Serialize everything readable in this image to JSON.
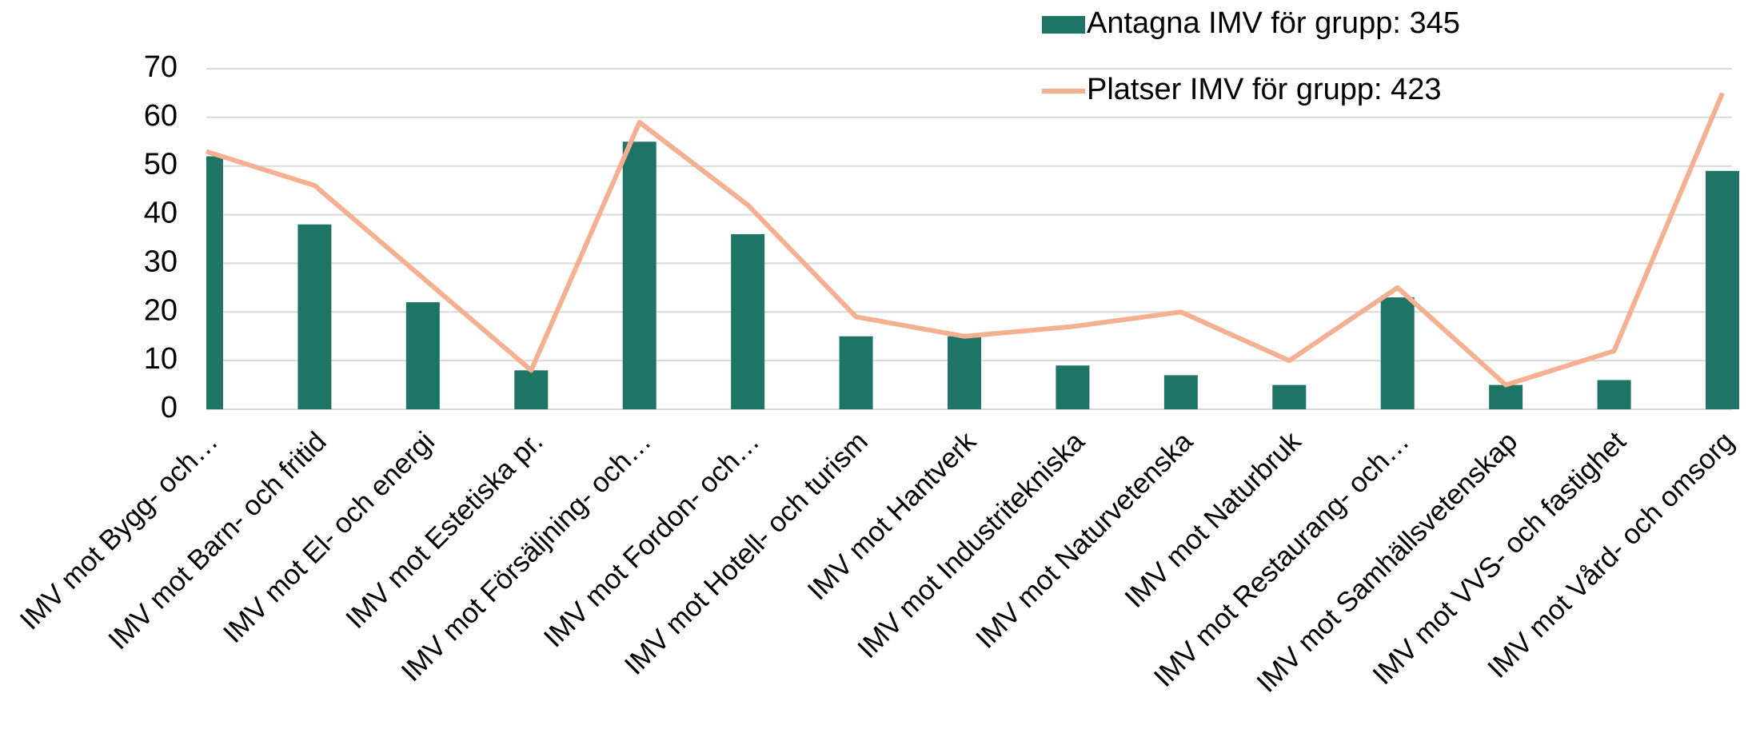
{
  "chart_data": {
    "type": "bar_line",
    "categories": [
      "IMV mot Bygg- och…",
      "IMV mot Barn- och fritid",
      "IMV mot El- och energi",
      "IMV mot Estetiska pr.",
      "IMV mot Försäljning- och…",
      "IMV mot Fordon- och…",
      "IMV mot Hotell- och turism",
      "IMV mot Hantverk",
      "IMV mot Industritekniska",
      "IMV mot Naturvetenska",
      "IMV mot Naturbruk",
      "IMV mot Restaurang- och…",
      "IMV mot Samhällsvetenskap",
      "IMV mot VVS- och fastighet",
      "IMV mot Vård- och omsorg"
    ],
    "series": [
      {
        "name": "Antagna IMV för grupp: 345",
        "type": "bar",
        "color": "#1e7566",
        "values": [
          52,
          38,
          22,
          8,
          55,
          36,
          15,
          15,
          9,
          7,
          5,
          23,
          5,
          6,
          49
        ]
      },
      {
        "name": "Platser IMV för grupp: 423",
        "type": "line",
        "color": "#f4b090",
        "values": [
          53,
          46,
          27,
          8,
          59,
          42,
          19,
          15,
          17,
          20,
          10,
          25,
          5,
          12,
          65
        ]
      }
    ],
    "ylim": [
      0,
      70
    ],
    "yticks": [
      0,
      10,
      20,
      30,
      40,
      50,
      60,
      70
    ],
    "grid": true,
    "legend": "top-right"
  }
}
